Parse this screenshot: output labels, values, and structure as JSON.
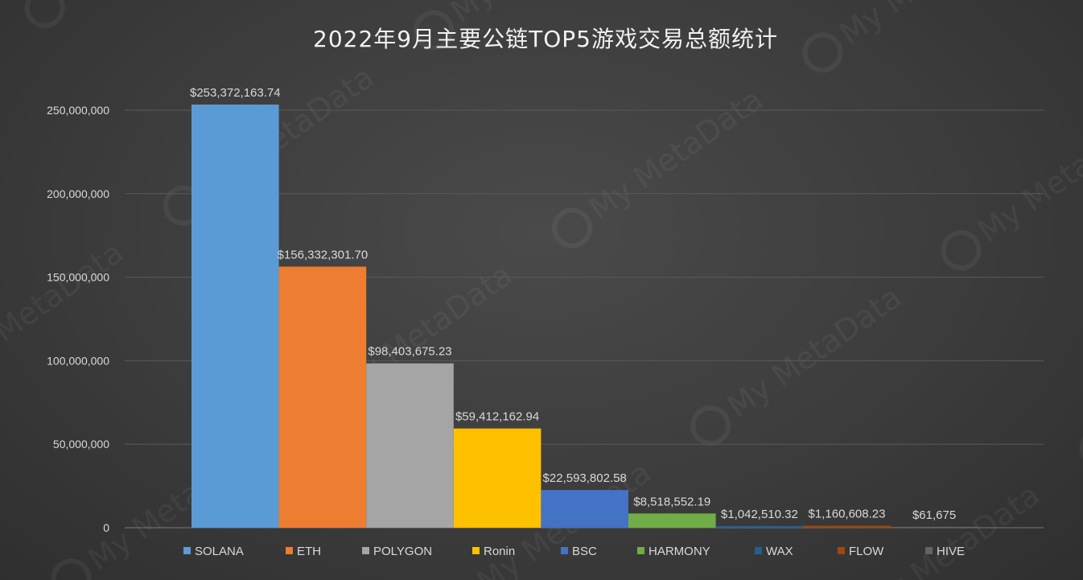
{
  "chart_data": {
    "type": "bar",
    "title": "2022年9月主要公链TOP5游戏交易总额统计",
    "xlabel": "",
    "ylabel": "",
    "ylim": [
      0,
      250000000
    ],
    "yticks": [
      "0",
      "50,000,000",
      "100,000,000",
      "150,000,000",
      "200,000,000",
      "250,000,000"
    ],
    "grid": true,
    "legend_position": "bottom",
    "series": [
      {
        "name": "SOLANA",
        "value": 253372163.74,
        "label": "$253,372,163.74",
        "color": "#5b9bd5"
      },
      {
        "name": "ETH",
        "value": 156332301.7,
        "label": "$156,332,301.70",
        "color": "#ed7d31"
      },
      {
        "name": "POLYGON",
        "value": 98403675.23,
        "label": "$98,403,675.23",
        "color": "#a5a5a5"
      },
      {
        "name": "Ronin",
        "value": 59412162.94,
        "label": "$59,412,162.94",
        "color": "#ffc000"
      },
      {
        "name": "BSC",
        "value": 22593802.58,
        "label": "$22,593,802.58",
        "color": "#4472c4"
      },
      {
        "name": "HARMONY",
        "value": 8518552.19,
        "label": "$8,518,552.19",
        "color": "#70ad47"
      },
      {
        "name": "WAX",
        "value": 1042510.32,
        "label": "$1,042,510.32",
        "color": "#255e91"
      },
      {
        "name": "FLOW",
        "value": 1160608.23,
        "label": "$1,160,608.23",
        "color": "#9e480e"
      },
      {
        "name": "HIVE",
        "value": 61675,
        "label": "$61,675",
        "color": "#636363"
      }
    ]
  }
}
